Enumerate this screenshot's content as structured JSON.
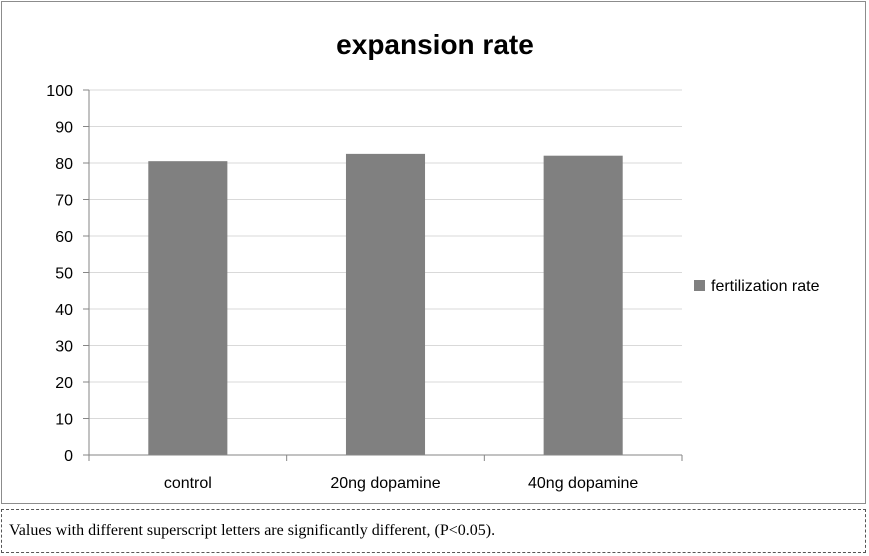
{
  "chart_data": {
    "type": "bar",
    "title": "expansion rate",
    "categories": [
      "control",
      "20ng dopamine",
      "40ng dopamine"
    ],
    "series": [
      {
        "name": "fertilization rate",
        "values": [
          80.5,
          82.5,
          82.0
        ],
        "color": "#808080"
      }
    ],
    "ylim": [
      0,
      100
    ],
    "yticks": [
      0,
      10,
      20,
      30,
      40,
      50,
      60,
      70,
      80,
      90,
      100
    ],
    "grid": true,
    "legend_position": "right"
  },
  "note": "Values with different superscript letters are significantly different, (P<0.05)."
}
